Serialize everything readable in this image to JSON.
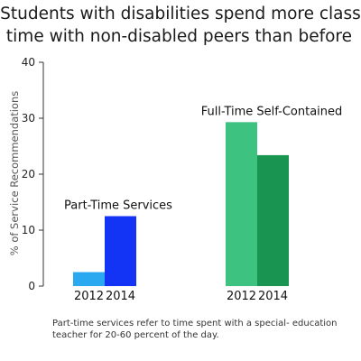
{
  "title_line1": "Students with disabilities spend more class",
  "title_line2": "time with non-disabled peers than before",
  "footnote": "Part-time services refer to time spent with a special- education teacher for 20-60 percent of the day.",
  "chart_data": {
    "type": "bar",
    "ylabel": "% of Service Recommendations",
    "xlabel": "",
    "ylim": [
      0,
      40
    ],
    "yticks": [
      0,
      10,
      20,
      30,
      40
    ],
    "grid": false,
    "groups": [
      {
        "name": "Part-Time Services",
        "bars": [
          {
            "category": "2012",
            "value": 2.5,
            "color": "#2aa9f0"
          },
          {
            "category": "2014",
            "value": 12.5,
            "color": "#1333f5"
          }
        ]
      },
      {
        "name": "Full-Time Self-Contained",
        "bars": [
          {
            "category": "2012",
            "value": 29.3,
            "color": "#3dc27f"
          },
          {
            "category": "2014",
            "value": 23.4,
            "color": "#1a9451"
          }
        ]
      }
    ]
  }
}
